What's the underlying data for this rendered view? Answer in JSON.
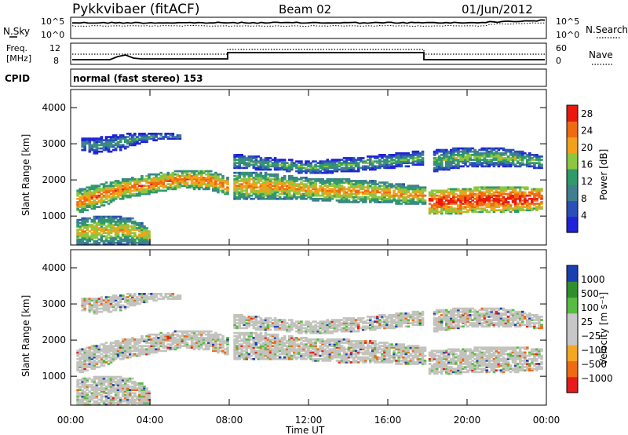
{
  "header": {
    "station": "Pykkvibaer (fitACF)",
    "beam": "Beam 02",
    "date": "01/Jun/2012"
  },
  "noise_panel": {
    "left_label": "N.Sky",
    "left_ticks": [
      "10^5",
      "10^0"
    ],
    "right_label": "N.Search",
    "right_ticks": [
      "10^5",
      "10^0"
    ]
  },
  "freq_panel": {
    "left_label_1": "Freq.",
    "left_label_2": "[MHz]",
    "left_ticks": [
      "12",
      "8"
    ],
    "right_label": "Nave",
    "right_ticks": [
      "60",
      "0"
    ]
  },
  "cpid_panel": {
    "label": "CPID",
    "text": "normal (fast stereo) 153"
  },
  "x_axis": {
    "ticks": [
      "00:00",
      "04:00",
      "08:00",
      "12:00",
      "16:00",
      "20:00",
      "00:00"
    ],
    "label": "Time UT"
  },
  "colors": {
    "power": [
      "#1f22d8",
      "#2a4fb8",
      "#3f7f8f",
      "#2f9a6a",
      "#8dc63f",
      "#f2a21a",
      "#ef6a12",
      "#e81a0e"
    ],
    "velocity": [
      "#e61b1b",
      "#ef6a12",
      "#f5a623",
      "#c7c7c7",
      "#c7c7c7",
      "#57bb44",
      "#2f8f2f",
      "#1c3fb0"
    ],
    "velocity_dominant": "#c3c3bd"
  },
  "chart_data": [
    {
      "type": "heatmap",
      "name": "power",
      "ylabel": "Slant Range [km]",
      "xlabel": "",
      "xlim": [
        0,
        24
      ],
      "ylim": [
        200,
        4500
      ],
      "y_ticks": [
        "1000",
        "2000",
        "3000",
        "4000"
      ],
      "colorbar_label": "Power [dB]",
      "colorbar_ticks": [
        "4",
        "8",
        "12",
        "16",
        "20",
        "24",
        "28"
      ],
      "colorbar_range": [
        0,
        30
      ],
      "bands": [
        {
          "x": [
            0.2,
            1.2,
            2.5,
            4.0,
            5.5,
            7.0,
            7.9
          ],
          "lo": [
            1050,
            1200,
            1450,
            1600,
            1750,
            1700,
            1550
          ],
          "hi": [
            1700,
            1850,
            2000,
            2150,
            2250,
            2250,
            2050
          ],
          "power": 18
        },
        {
          "x": [
            0.2,
            1.5,
            3.0,
            3.9
          ],
          "lo": [
            200,
            200,
            200,
            200
          ],
          "hi": [
            900,
            1000,
            950,
            700
          ],
          "power": 14
        },
        {
          "x": [
            8.1,
            9.5,
            11.0,
            12.5,
            14.0,
            15.5,
            17.0,
            17.9
          ],
          "lo": [
            1450,
            1450,
            1450,
            1400,
            1350,
            1350,
            1300,
            1300
          ],
          "hi": [
            2200,
            2200,
            2100,
            2000,
            2000,
            1950,
            1850,
            1800
          ],
          "power": 16
        },
        {
          "x": [
            18.0,
            19.5,
            21.0,
            22.5,
            23.8
          ],
          "lo": [
            1050,
            1050,
            1100,
            1100,
            1150
          ],
          "hi": [
            1700,
            1750,
            1800,
            1800,
            1750
          ],
          "power": 22
        },
        {
          "x": [
            18.2,
            20.0,
            22.0,
            23.8
          ],
          "lo": [
            2200,
            2350,
            2350,
            2300
          ],
          "hi": [
            2800,
            2900,
            2850,
            2650
          ],
          "power": 10
        },
        {
          "x": [
            0.5,
            1.2,
            2.5,
            3.5,
            4.5,
            5.5
          ],
          "lo": [
            2800,
            2700,
            2800,
            3000,
            3100,
            3100
          ],
          "hi": [
            3150,
            3150,
            3250,
            3300,
            3300,
            3250
          ],
          "power": 6
        },
        {
          "x": [
            8.2,
            10.0,
            12.0,
            14.0,
            16.0,
            17.8
          ],
          "lo": [
            2300,
            2250,
            2150,
            2200,
            2300,
            2400
          ],
          "hi": [
            2700,
            2600,
            2500,
            2600,
            2700,
            2800
          ],
          "power": 8
        }
      ]
    },
    {
      "type": "heatmap",
      "name": "velocity",
      "ylabel": "Slant Range [km]",
      "xlabel": "Time UT",
      "xlim": [
        0,
        24
      ],
      "ylim": [
        200,
        4500
      ],
      "y_ticks": [
        "1000",
        "2000",
        "3000",
        "4000"
      ],
      "colorbar_label": "Velocity [m s⁻¹]",
      "colorbar_ticks": [
        "1000",
        "500",
        "100",
        "25",
        "−25",
        "−100",
        "−500",
        "−1000"
      ],
      "colorbar_range": [
        -1000,
        1000
      ]
    }
  ]
}
